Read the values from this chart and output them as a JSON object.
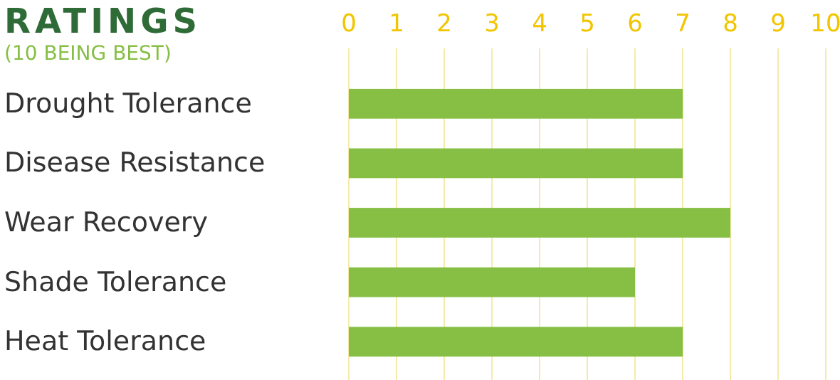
{
  "chart_data": {
    "type": "bar",
    "orientation": "horizontal",
    "title": "RATINGS",
    "subtitle": "(10 BEING BEST)",
    "categories": [
      "Drought Tolerance",
      "Disease Resistance",
      "Wear Recovery",
      "Shade Tolerance",
      "Heat Tolerance"
    ],
    "values": [
      7,
      7,
      8,
      6,
      7
    ],
    "color": "#86bf44",
    "xlim": [
      0,
      10
    ],
    "xticks": [
      0,
      1,
      2,
      3,
      4,
      5,
      6,
      7,
      8,
      9,
      10
    ],
    "grid": "x"
  }
}
